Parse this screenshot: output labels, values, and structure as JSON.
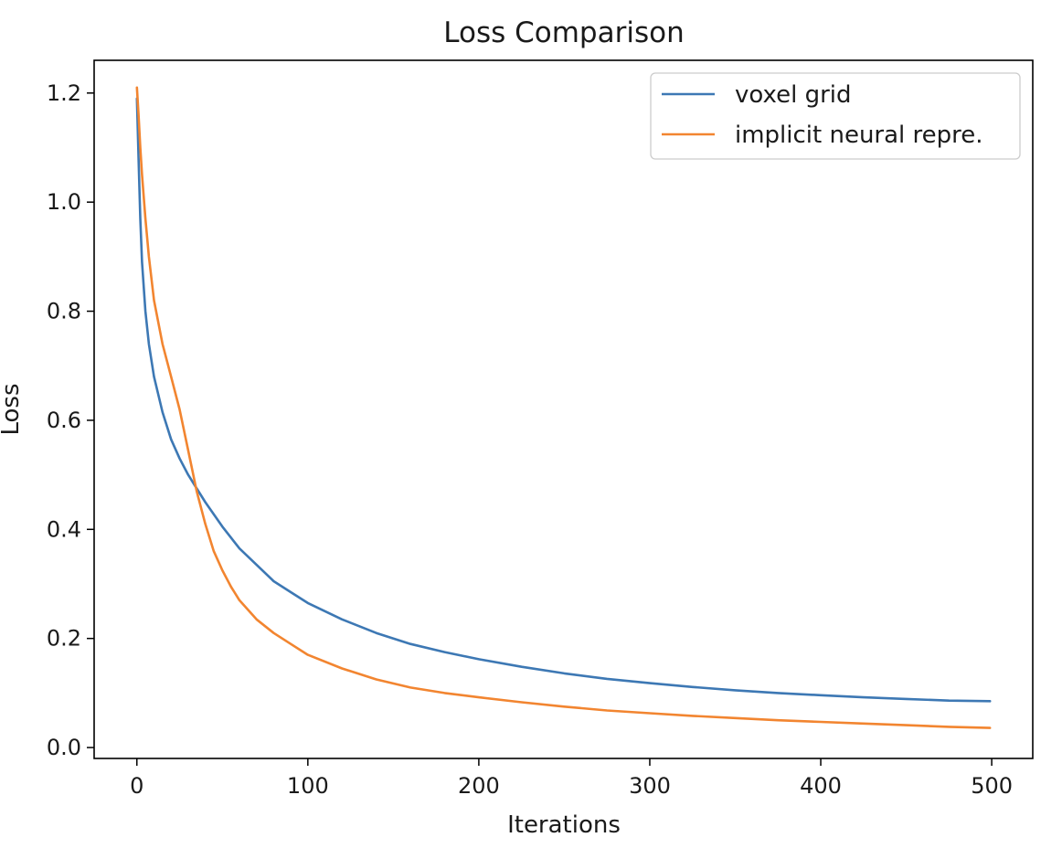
{
  "chart_data": {
    "type": "line",
    "title": "Loss Comparison",
    "xlabel": "Iterations",
    "ylabel": "Loss",
    "xlim": [
      -25,
      524
    ],
    "ylim": [
      -0.02,
      1.26
    ],
    "xticks": [
      0,
      100,
      200,
      300,
      400,
      500
    ],
    "xtick_labels": [
      "0",
      "100",
      "200",
      "300",
      "400",
      "500"
    ],
    "yticks": [
      0.0,
      0.2,
      0.4,
      0.6,
      0.8,
      1.0,
      1.2
    ],
    "ytick_labels": [
      "0.0",
      "0.2",
      "0.4",
      "0.6",
      "0.8",
      "1.0",
      "1.2"
    ],
    "grid": false,
    "legend_position": "top-right",
    "series": [
      {
        "name": "voxel grid",
        "color": "#3d78b4",
        "x": [
          0,
          1,
          2,
          3,
          5,
          7,
          10,
          15,
          20,
          25,
          30,
          35,
          40,
          50,
          60,
          70,
          80,
          90,
          100,
          120,
          140,
          160,
          180,
          200,
          225,
          250,
          275,
          300,
          325,
          350,
          375,
          400,
          425,
          450,
          475,
          499
        ],
        "y": [
          1.19,
          1.08,
          0.97,
          0.89,
          0.8,
          0.74,
          0.68,
          0.615,
          0.565,
          0.53,
          0.5,
          0.475,
          0.45,
          0.405,
          0.365,
          0.335,
          0.305,
          0.285,
          0.265,
          0.235,
          0.21,
          0.19,
          0.175,
          0.162,
          0.148,
          0.136,
          0.126,
          0.118,
          0.111,
          0.105,
          0.1,
          0.096,
          0.092,
          0.089,
          0.086,
          0.085
        ]
      },
      {
        "name": "implicit neural repre.",
        "color": "#f28530",
        "x": [
          0,
          1,
          2,
          3,
          5,
          7,
          10,
          15,
          20,
          25,
          30,
          35,
          40,
          45,
          50,
          55,
          60,
          70,
          80,
          90,
          100,
          120,
          140,
          160,
          180,
          200,
          225,
          250,
          275,
          300,
          325,
          350,
          375,
          400,
          425,
          450,
          475,
          499
        ],
        "y": [
          1.21,
          1.16,
          1.1,
          1.05,
          0.97,
          0.9,
          0.82,
          0.74,
          0.68,
          0.62,
          0.545,
          0.47,
          0.41,
          0.36,
          0.325,
          0.295,
          0.27,
          0.235,
          0.21,
          0.19,
          0.17,
          0.145,
          0.125,
          0.11,
          0.1,
          0.092,
          0.083,
          0.075,
          0.068,
          0.063,
          0.058,
          0.054,
          0.05,
          0.047,
          0.044,
          0.041,
          0.038,
          0.036
        ]
      }
    ]
  }
}
